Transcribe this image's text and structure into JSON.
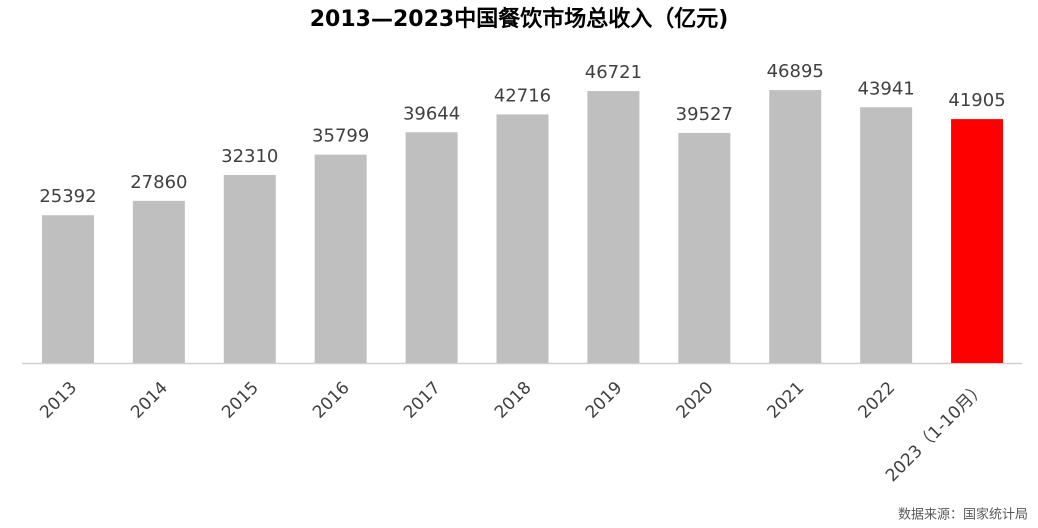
{
  "chart_data": {
    "type": "bar",
    "title": "2013—2023中国餐饮市场总收入（亿元)",
    "categories": [
      "2013",
      "2014",
      "2015",
      "2016",
      "2017",
      "2018",
      "2019",
      "2020",
      "2021",
      "2022",
      "2023（1-10月）"
    ],
    "values": [
      25392,
      27860,
      32310,
      35799,
      39644,
      42716,
      46721,
      39527,
      46895,
      43941,
      41905
    ],
    "colors": [
      "#bfbfbf",
      "#bfbfbf",
      "#bfbfbf",
      "#bfbfbf",
      "#bfbfbf",
      "#bfbfbf",
      "#bfbfbf",
      "#bfbfbf",
      "#bfbfbf",
      "#bfbfbf",
      "#ff0000"
    ],
    "ylim": [
      0,
      50000
    ],
    "source": "数据来源：国家统计局"
  }
}
